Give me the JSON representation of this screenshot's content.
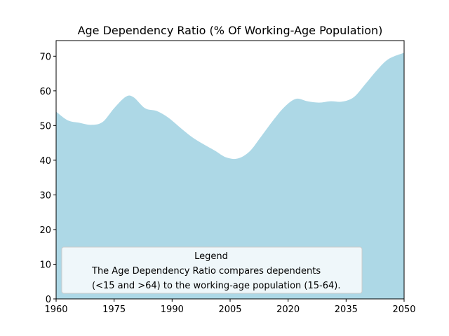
{
  "chart_data": {
    "type": "area",
    "title": "Age Dependency Ratio (% Of Working-Age Population)",
    "xlabel": "",
    "ylabel": "",
    "xlim": [
      1960,
      2050
    ],
    "ylim": [
      0,
      74.5
    ],
    "x_ticks": [
      1960,
      1975,
      1990,
      2005,
      2020,
      2035,
      2050
    ],
    "y_ticks": [
      0,
      10,
      20,
      30,
      40,
      50,
      60,
      70
    ],
    "grid": false,
    "fill_color": "#add8e6",
    "series": [
      {
        "x": [
          1960,
          1963,
          1966,
          1969,
          1972,
          1975,
          1978,
          1980,
          1983,
          1986,
          1989,
          1992,
          1995,
          1998,
          2001,
          2004,
          2007,
          2010,
          2013,
          2016,
          2019,
          2022,
          2025,
          2028,
          2031,
          2034,
          2037,
          2040,
          2043,
          2046,
          2050
        ],
        "values": [
          54,
          51.5,
          50.8,
          50.2,
          51,
          55,
          58.3,
          58.2,
          55,
          54.2,
          52.3,
          49.5,
          46.8,
          44.7,
          42.8,
          40.8,
          40.5,
          42.5,
          46.8,
          51.3,
          55.3,
          57.7,
          57,
          56.6,
          57,
          56.9,
          58.2,
          62,
          66,
          69.2,
          71
        ]
      }
    ],
    "legend": {
      "title": "Legend",
      "lines": [
        "The Age Dependency Ratio compares dependents",
        "(<15 and >64) to the working-age population (15-64)."
      ],
      "placement": "lower-left"
    }
  }
}
